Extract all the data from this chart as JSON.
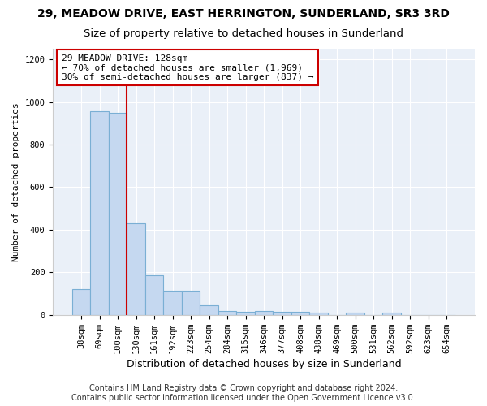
{
  "title_line1": "29, MEADOW DRIVE, EAST HERRINGTON, SUNDERLAND, SR3 3RD",
  "title_line2": "Size of property relative to detached houses in Sunderland",
  "xlabel": "Distribution of detached houses by size in Sunderland",
  "ylabel": "Number of detached properties",
  "categories": [
    "38sqm",
    "69sqm",
    "100sqm",
    "130sqm",
    "161sqm",
    "192sqm",
    "223sqm",
    "254sqm",
    "284sqm",
    "315sqm",
    "346sqm",
    "377sqm",
    "408sqm",
    "438sqm",
    "469sqm",
    "500sqm",
    "531sqm",
    "562sqm",
    "592sqm",
    "623sqm",
    "654sqm"
  ],
  "values": [
    120,
    955,
    950,
    430,
    185,
    115,
    115,
    45,
    20,
    15,
    20,
    15,
    15,
    10,
    0,
    10,
    0,
    10,
    0,
    0,
    0
  ],
  "bar_color": "#c5d8f0",
  "bar_edge_color": "#7aafd4",
  "vline_color": "#cc0000",
  "annotation_text": "29 MEADOW DRIVE: 128sqm\n← 70% of detached houses are smaller (1,969)\n30% of semi-detached houses are larger (837) →",
  "annotation_box_color": "white",
  "annotation_box_edge": "#cc0000",
  "ylim": [
    0,
    1250
  ],
  "yticks": [
    0,
    200,
    400,
    600,
    800,
    1000,
    1200
  ],
  "background_color": "#eaf0f8",
  "footer_text": "Contains HM Land Registry data © Crown copyright and database right 2024.\nContains public sector information licensed under the Open Government Licence v3.0.",
  "title_fontsize": 10,
  "subtitle_fontsize": 9.5,
  "xlabel_fontsize": 9,
  "ylabel_fontsize": 8,
  "tick_fontsize": 7.5,
  "annotation_fontsize": 8,
  "footer_fontsize": 7
}
